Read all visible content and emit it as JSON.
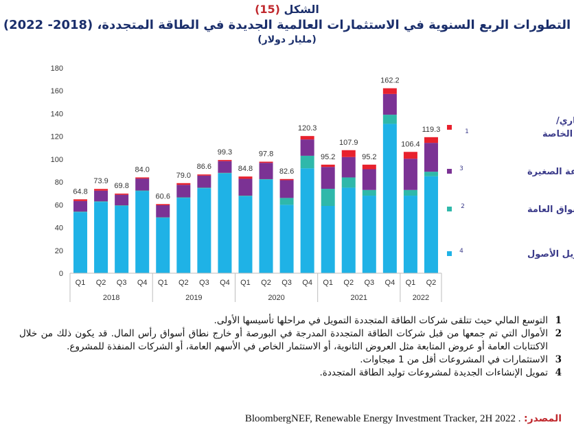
{
  "header": {
    "figure_word": "الشكل",
    "figure_number": "(15)",
    "title": "التطورات الربع السنوية في الاستثمارات العالمية الجديدة في الطاقة المتجددة، (2018- 2022)",
    "unit": "(مليار دولار)"
  },
  "chart_data": {
    "type": "bar",
    "stacked": true,
    "title": "التطورات الربع السنوية في الاستثمارات العالمية الجديدة في الطاقة المتجددة، (2018- 2022)",
    "ylabel": "مليار دولار",
    "xlabel": "",
    "ylim": [
      0,
      180
    ],
    "yticks": [
      0,
      20,
      40,
      60,
      80,
      100,
      120,
      140,
      160,
      180
    ],
    "categories": [
      "Q1",
      "Q2",
      "Q3",
      "Q4",
      "Q1",
      "Q2",
      "Q3",
      "Q4",
      "Q1",
      "Q2",
      "Q3",
      "Q4",
      "Q1",
      "Q2",
      "Q3",
      "Q4",
      "Q1",
      "Q2"
    ],
    "years": [
      {
        "label": "2018",
        "count": 4
      },
      {
        "label": "2019",
        "count": 4
      },
      {
        "label": "2020",
        "count": 4
      },
      {
        "label": "2021",
        "count": 4
      },
      {
        "label": "2022",
        "count": 2
      }
    ],
    "totals_labels": [
      "64.8",
      "73.9",
      "69.8",
      "84.0",
      "60.6",
      "79.0",
      "86.6",
      "99.3",
      "84.8",
      "97.8",
      "82.6",
      "120.3",
      "95.2",
      "107.9",
      "95.2",
      "162.2",
      "106.4",
      "119.3"
    ],
    "series": [
      {
        "name": "تمويل الأصول",
        "sup": "4",
        "color": "#1fb2e6",
        "values": [
          53.5,
          62.5,
          59,
          72,
          48.5,
          66,
          74.5,
          87.5,
          67.5,
          82,
          60,
          92,
          59,
          75,
          68,
          131,
          68,
          85
        ]
      },
      {
        "name": "الأسواق العامة",
        "sup": "2",
        "color": "#2fb8aa",
        "values": [
          0.5,
          0.5,
          0.5,
          0.5,
          0.5,
          0.5,
          0.5,
          0.5,
          0.5,
          0.5,
          6,
          11,
          15,
          9,
          5,
          8,
          5,
          4
        ]
      },
      {
        "name": "القدرة الموزعة الصغيرة",
        "sup": "3",
        "color": "#7b3294",
        "values": [
          9.3,
          9.4,
          9.3,
          10.5,
          10.6,
          11,
          10.6,
          10.3,
          14.8,
          14.3,
          15.6,
          14.3,
          19.2,
          17.9,
          18.2,
          18.2,
          27.4,
          25.3
        ]
      },
      {
        "name": "رأس المال الاستثماري/ الأسهم الخاصة",
        "sup": "1",
        "color": "#e8212d",
        "values": [
          1.5,
          1.5,
          1,
          1,
          1,
          1.5,
          1,
          1,
          2,
          1,
          1,
          3,
          2,
          6,
          4,
          5,
          6,
          5
        ]
      }
    ],
    "legend_position": "right",
    "grid": false
  },
  "notes": [
    {
      "num": "1",
      "text": "التوسع المالي حيث تتلقى شركات الطاقة المتجددة التمويل في مراحلها تأسيسها الأولى."
    },
    {
      "num": "2",
      "text": "الأموال التي تم جمعها من قبل شركات الطاقة المتجددة المدرجة في البورصة أو خارج نطاق أسواق رأس المال. قد يكون ذلك من خلال الاكتتابات العامة أو عروض المتابعة مثل العروض الثانوية، أو الاستثمار الخاص في الأسهم العامة، أو الشركات المنفذة للمشروع."
    },
    {
      "num": "3",
      "text": "الاستثمارات في المشروعات أقل من 1 ميجاوات."
    },
    {
      "num": "4",
      "text": "تمويل الإنشاءات الجديدة لمشروعات توليد الطاقة المتجددة."
    }
  ],
  "source": {
    "label": "المصدر:",
    "text": "BloombergNEF, Renewable Energy Investment Tracker, 2H 2022 ."
  }
}
